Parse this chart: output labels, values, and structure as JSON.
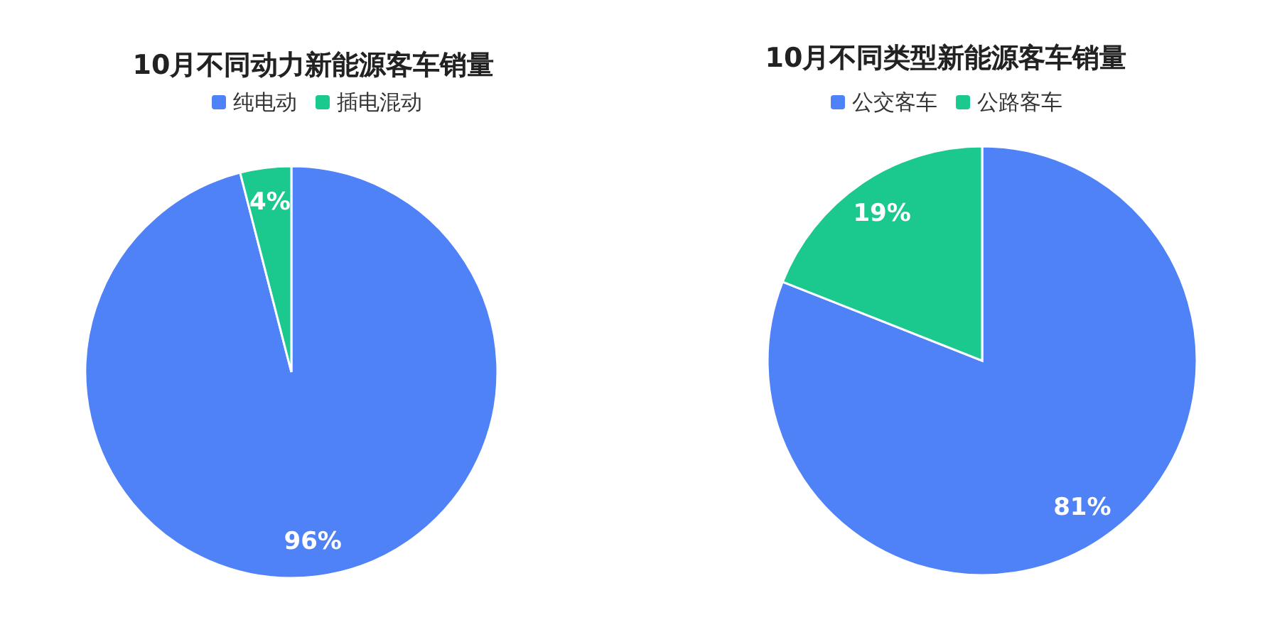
{
  "chart_data": [
    {
      "type": "pie",
      "title": "10月不同动力新能源客车销量",
      "categories": [
        "纯电动",
        "插电混动"
      ],
      "values": [
        96,
        4
      ],
      "colors": [
        "#4f81f7",
        "#1bc98e"
      ],
      "value_labels": [
        "96%",
        "4%"
      ],
      "legend": "top"
    },
    {
      "type": "pie",
      "title": "10月不同类型新能源客车销量",
      "categories": [
        "公交客车",
        "公路客车"
      ],
      "values": [
        81,
        19
      ],
      "colors": [
        "#4f81f7",
        "#1bc98e"
      ],
      "value_labels": [
        "81%",
        "19%"
      ],
      "legend": "top"
    }
  ]
}
